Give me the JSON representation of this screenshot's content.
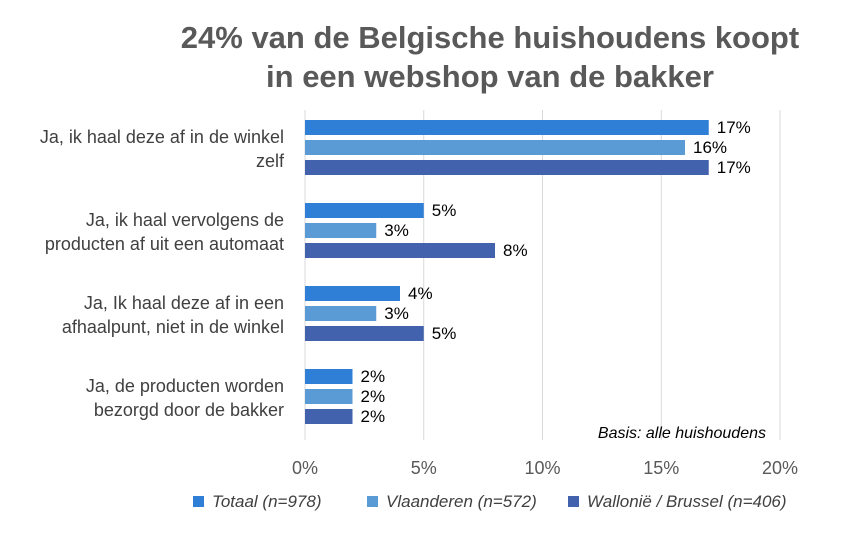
{
  "chart_data": {
    "type": "bar",
    "orientation": "horizontal",
    "title_lines": [
      "24% van de Belgische huishoudens koopt",
      "in een webshop van de bakker"
    ],
    "categories": [
      [
        "Ja, ik haal deze af in de winkel",
        "zelf"
      ],
      [
        "Ja, ik haal vervolgens de",
        "producten af uit een automaat"
      ],
      [
        "Ja, Ik haal deze af in een",
        "afhaalpunt, niet in de winkel"
      ],
      [
        "Ja, de producten worden",
        "bezorgd door de bakker"
      ]
    ],
    "series": [
      {
        "name": "Totaal (n=978)",
        "color": "#2E7FD5",
        "values": [
          17,
          5,
          4,
          2
        ],
        "labels": [
          "17%",
          "5%",
          "4%",
          "2%"
        ]
      },
      {
        "name": "Vlaanderen (n=572)",
        "color": "#5B9BD5",
        "values": [
          16,
          3,
          3,
          2
        ],
        "labels": [
          "16%",
          "3%",
          "3%",
          "2%"
        ]
      },
      {
        "name": "Wallonië / Brussel (n=406)",
        "color": "#4262AE",
        "values": [
          17,
          8,
          5,
          2
        ],
        "labels": [
          "17%",
          "8%",
          "5%",
          "2%"
        ]
      }
    ],
    "xaxis": {
      "ticks": [
        0,
        5,
        10,
        15,
        20
      ],
      "tick_labels": [
        "0%",
        "5%",
        "10%",
        "15%",
        "20%"
      ],
      "range": [
        0,
        20
      ]
    },
    "grid": true,
    "legend_position": "bottom",
    "note": "Basis: alle huishoudens"
  }
}
